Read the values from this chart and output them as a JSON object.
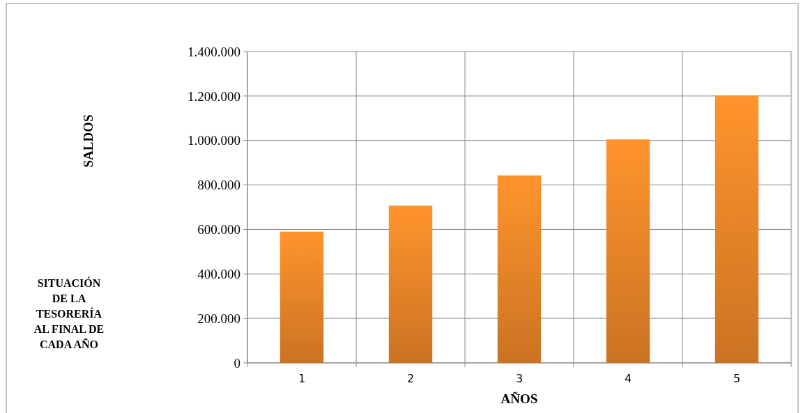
{
  "chart_data": {
    "type": "bar",
    "title": "SITUACIÓN DE LA TESORERÍA AL FINAL DE CADA AÑO",
    "xlabel": "AÑOS",
    "annotations": [
      "SALDOS"
    ],
    "categories": [
      "1",
      "2",
      "3",
      "4",
      "5"
    ],
    "values": [
      590000,
      707000,
      843000,
      1005000,
      1203000
    ],
    "color": "#f28a2a",
    "ylim": [
      0,
      1400000
    ],
    "yticks": [
      {
        "value": 0,
        "label": "0"
      },
      {
        "value": 200000,
        "label": "200.000"
      },
      {
        "value": 400000,
        "label": "400.000"
      },
      {
        "value": 600000,
        "label": "600.000"
      },
      {
        "value": 800000,
        "label": "800.000"
      },
      {
        "value": 1000000,
        "label": "1.000.000"
      },
      {
        "value": 1200000,
        "label": "1.200.000"
      },
      {
        "value": 1400000,
        "label": "1.400.000"
      }
    ],
    "grid": true
  }
}
